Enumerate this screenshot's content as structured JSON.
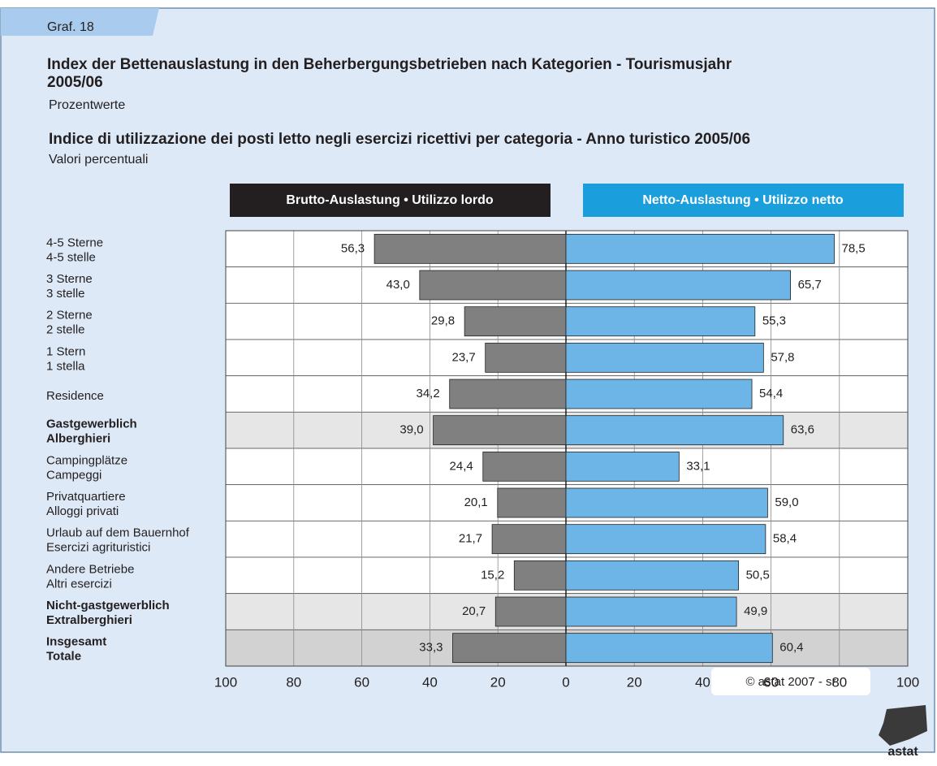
{
  "tab_label": "Graf. 18",
  "copyright": "© astat 2007 - sr",
  "logo_text": "astat",
  "chart_data": {
    "type": "butterfly",
    "title": "Index der Bettenauslastung in den Beherbergungsbetrieben nach Kategorien - Tourismusjahr 2005/06",
    "subtitle": "Prozentwerte",
    "title_2": "Indice di utilizzazione dei posti letto negli esercizi ricettivi per categoria - Anno turistico 2005/06",
    "subtitle_2": "Valori percentuali",
    "categories": [
      [
        "4-5 Sterne",
        "4-5 stelle"
      ],
      [
        "3 Sterne",
        "3 stelle"
      ],
      [
        "2 Sterne",
        "2 stelle"
      ],
      [
        "1 Stern",
        "1 stella"
      ],
      [
        "Residence"
      ],
      [
        "Gastgewerblich",
        "Alberghieri"
      ],
      [
        "Campingplätze",
        "Campeggi"
      ],
      [
        "Privatquartiere",
        "Alloggi privati"
      ],
      [
        "Urlaub auf dem Bauernhof",
        "Esercizi agrituristici"
      ],
      [
        "Andere Betriebe",
        "Altri esercizi"
      ],
      [
        "Nicht-gastgewerblich",
        "Extralberghieri"
      ],
      [
        "Insgesamt",
        "Totale"
      ]
    ],
    "category_bold": [
      false,
      false,
      false,
      false,
      false,
      true,
      false,
      false,
      false,
      false,
      true,
      true
    ],
    "row_fill": [
      "#ffffff",
      "#ffffff",
      "#ffffff",
      "#ffffff",
      "#ffffff",
      "#e6e6e6",
      "#ffffff",
      "#ffffff",
      "#ffffff",
      "#ffffff",
      "#e6e6e6",
      "#d2d2d2"
    ],
    "series": [
      {
        "name": "Brutto-Auslastung • Utilizzo lordo",
        "side": "left",
        "color": "#808080",
        "header_color": "#231f20",
        "values": [
          56.3,
          43.0,
          29.8,
          23.7,
          34.2,
          39.0,
          24.4,
          20.1,
          21.7,
          15.2,
          20.7,
          33.3
        ],
        "value_labels": [
          "56,3",
          "43,0",
          "29,8",
          "23,7",
          "34,2",
          "39,0",
          "24,4",
          "20,1",
          "21,7",
          "15,2",
          "20,7",
          "33,3"
        ]
      },
      {
        "name": "Netto-Auslastung • Utilizzo netto",
        "side": "right",
        "color": "#6cb5e6",
        "header_color": "#1b9fdc",
        "values": [
          78.5,
          65.7,
          55.3,
          57.8,
          54.4,
          63.6,
          33.1,
          59.0,
          58.4,
          50.5,
          49.9,
          60.4
        ],
        "value_labels": [
          "78,5",
          "65,7",
          "55,3",
          "57,8",
          "54,4",
          "63,6",
          "33,1",
          "59,0",
          "58,4",
          "50,5",
          "49,9",
          "60,4"
        ]
      }
    ],
    "xlim_left": [
      100,
      0
    ],
    "xticks_left": [
      100,
      80,
      60,
      40,
      20
    ],
    "xlim": [
      0,
      100
    ],
    "xticks": [
      0,
      20,
      40,
      60,
      80,
      100
    ],
    "grid": true
  }
}
